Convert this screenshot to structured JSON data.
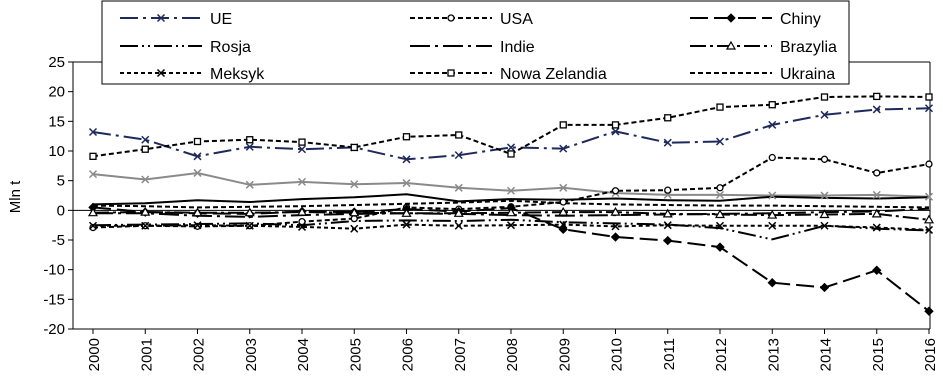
{
  "chart_data": {
    "type": "line",
    "ylabel": "Mln t",
    "xlabel": "",
    "ylim": [
      -20,
      25
    ],
    "yticks": [
      -20,
      -15,
      -10,
      -5,
      0,
      5,
      10,
      15,
      20,
      25
    ],
    "x": [
      "2000",
      "2001",
      "2002",
      "2003",
      "2004",
      "2005",
      "2006",
      "2007",
      "2008",
      "2009",
      "2010",
      "2011",
      "2012",
      "2013",
      "2014",
      "2015",
      "2016"
    ],
    "grid": false,
    "legend_position": "top",
    "series": [
      {
        "name": "UE",
        "color": "#1f2a5c",
        "marker": "x",
        "dash": "18 5 3 5",
        "values": [
          13.2,
          11.9,
          9.1,
          10.7,
          10.3,
          10.6,
          8.6,
          9.3,
          10.6,
          10.4,
          13.3,
          11.4,
          11.6,
          14.4,
          16.1,
          17.0,
          17.2
        ]
      },
      {
        "name": "USA",
        "color": "#000000",
        "marker": "circle",
        "dash": "5 3",
        "values": [
          -2.9,
          -2.6,
          -2.7,
          -2.6,
          -1.9,
          -1.4,
          0.5,
          0.2,
          0.6,
          1.4,
          3.3,
          3.4,
          3.8,
          8.9,
          8.6,
          6.3,
          7.8
        ]
      },
      {
        "name": "Chiny",
        "color": "#000000",
        "marker": "diamond",
        "dash": "18 6",
        "values": [
          0.5,
          -0.3,
          -0.5,
          -0.6,
          -0.2,
          -0.3,
          0.2,
          -0.2,
          0.4,
          -3.2,
          -4.5,
          -5.1,
          -6.2,
          -12.2,
          -13.0,
          -10.1,
          -17.0
        ]
      },
      {
        "name": "Rosja",
        "color": "#000000",
        "marker": "none",
        "dash": "18 4 2 4 2 4",
        "values": [
          -2.5,
          -2.4,
          -2.3,
          -2.2,
          -2.5,
          -1.8,
          -1.7,
          -1.8,
          -1.6,
          -2.0,
          -2.2,
          -2.4,
          -3.0,
          -4.9,
          -2.6,
          -3.1,
          -3.4
        ]
      },
      {
        "name": "Indie",
        "color": "#000000",
        "marker": "none",
        "dash": "20 5 3 5",
        "values": [
          -0.5,
          -0.5,
          -0.9,
          -1.1,
          -0.8,
          -0.6,
          -0.5,
          -0.6,
          -0.8,
          -0.9,
          -0.8,
          -0.7,
          -0.6,
          -0.5,
          -0.3,
          -0.2,
          0.3
        ]
      },
      {
        "name": "Brazylia",
        "color": "#000000",
        "marker": "triangle",
        "dash": "16 4 3 4",
        "values": [
          -0.4,
          -0.3,
          -0.4,
          -0.4,
          -0.3,
          -0.4,
          -0.5,
          -0.5,
          -0.4,
          -0.3,
          -0.3,
          -0.6,
          -0.7,
          -0.8,
          -0.7,
          -0.6,
          -1.6
        ]
      },
      {
        "name": "Meksyk",
        "color": "#000000",
        "marker": "x",
        "dash": "4 3",
        "values": [
          -2.6,
          -2.6,
          -2.5,
          -2.6,
          -2.8,
          -3.1,
          -2.4,
          -2.6,
          -2.5,
          -2.4,
          -2.7,
          -2.5,
          -2.6,
          -2.6,
          -2.6,
          -2.9,
          -3.3
        ]
      },
      {
        "name": "Nowa Zelandia",
        "color": "#000000",
        "marker": "square",
        "dash": "5 3",
        "values": [
          9.1,
          10.3,
          11.6,
          11.9,
          11.5,
          10.6,
          12.4,
          12.7,
          9.5,
          14.4,
          14.4,
          15.6,
          17.4,
          17.8,
          19.1,
          19.2,
          19.1
        ]
      },
      {
        "name": "Ukraina",
        "color": "#000000",
        "marker": "none",
        "dash": "5 3",
        "values": [
          0.8,
          0.7,
          0.5,
          0.6,
          0.7,
          0.9,
          1.1,
          1.3,
          1.6,
          1.2,
          1.0,
          0.9,
          0.8,
          0.8,
          0.7,
          0.6,
          0.5
        ]
      }
    ],
    "extra_series_unlabeled": [
      {
        "color": "#8a8a8a",
        "marker": "x",
        "dash": "",
        "values": [
          6.1,
          5.2,
          6.3,
          4.3,
          4.8,
          4.4,
          4.6,
          3.8,
          3.3,
          3.8,
          2.9,
          2.6,
          2.6,
          2.5,
          2.5,
          2.6,
          2.3
        ]
      },
      {
        "color": "#000000",
        "marker": "none",
        "dash": "",
        "values": [
          1.0,
          1.2,
          1.7,
          1.4,
          1.9,
          2.2,
          2.7,
          1.5,
          1.9,
          1.8,
          2.0,
          1.7,
          1.6,
          2.3,
          2.1,
          2.0,
          2.2
        ]
      }
    ]
  }
}
